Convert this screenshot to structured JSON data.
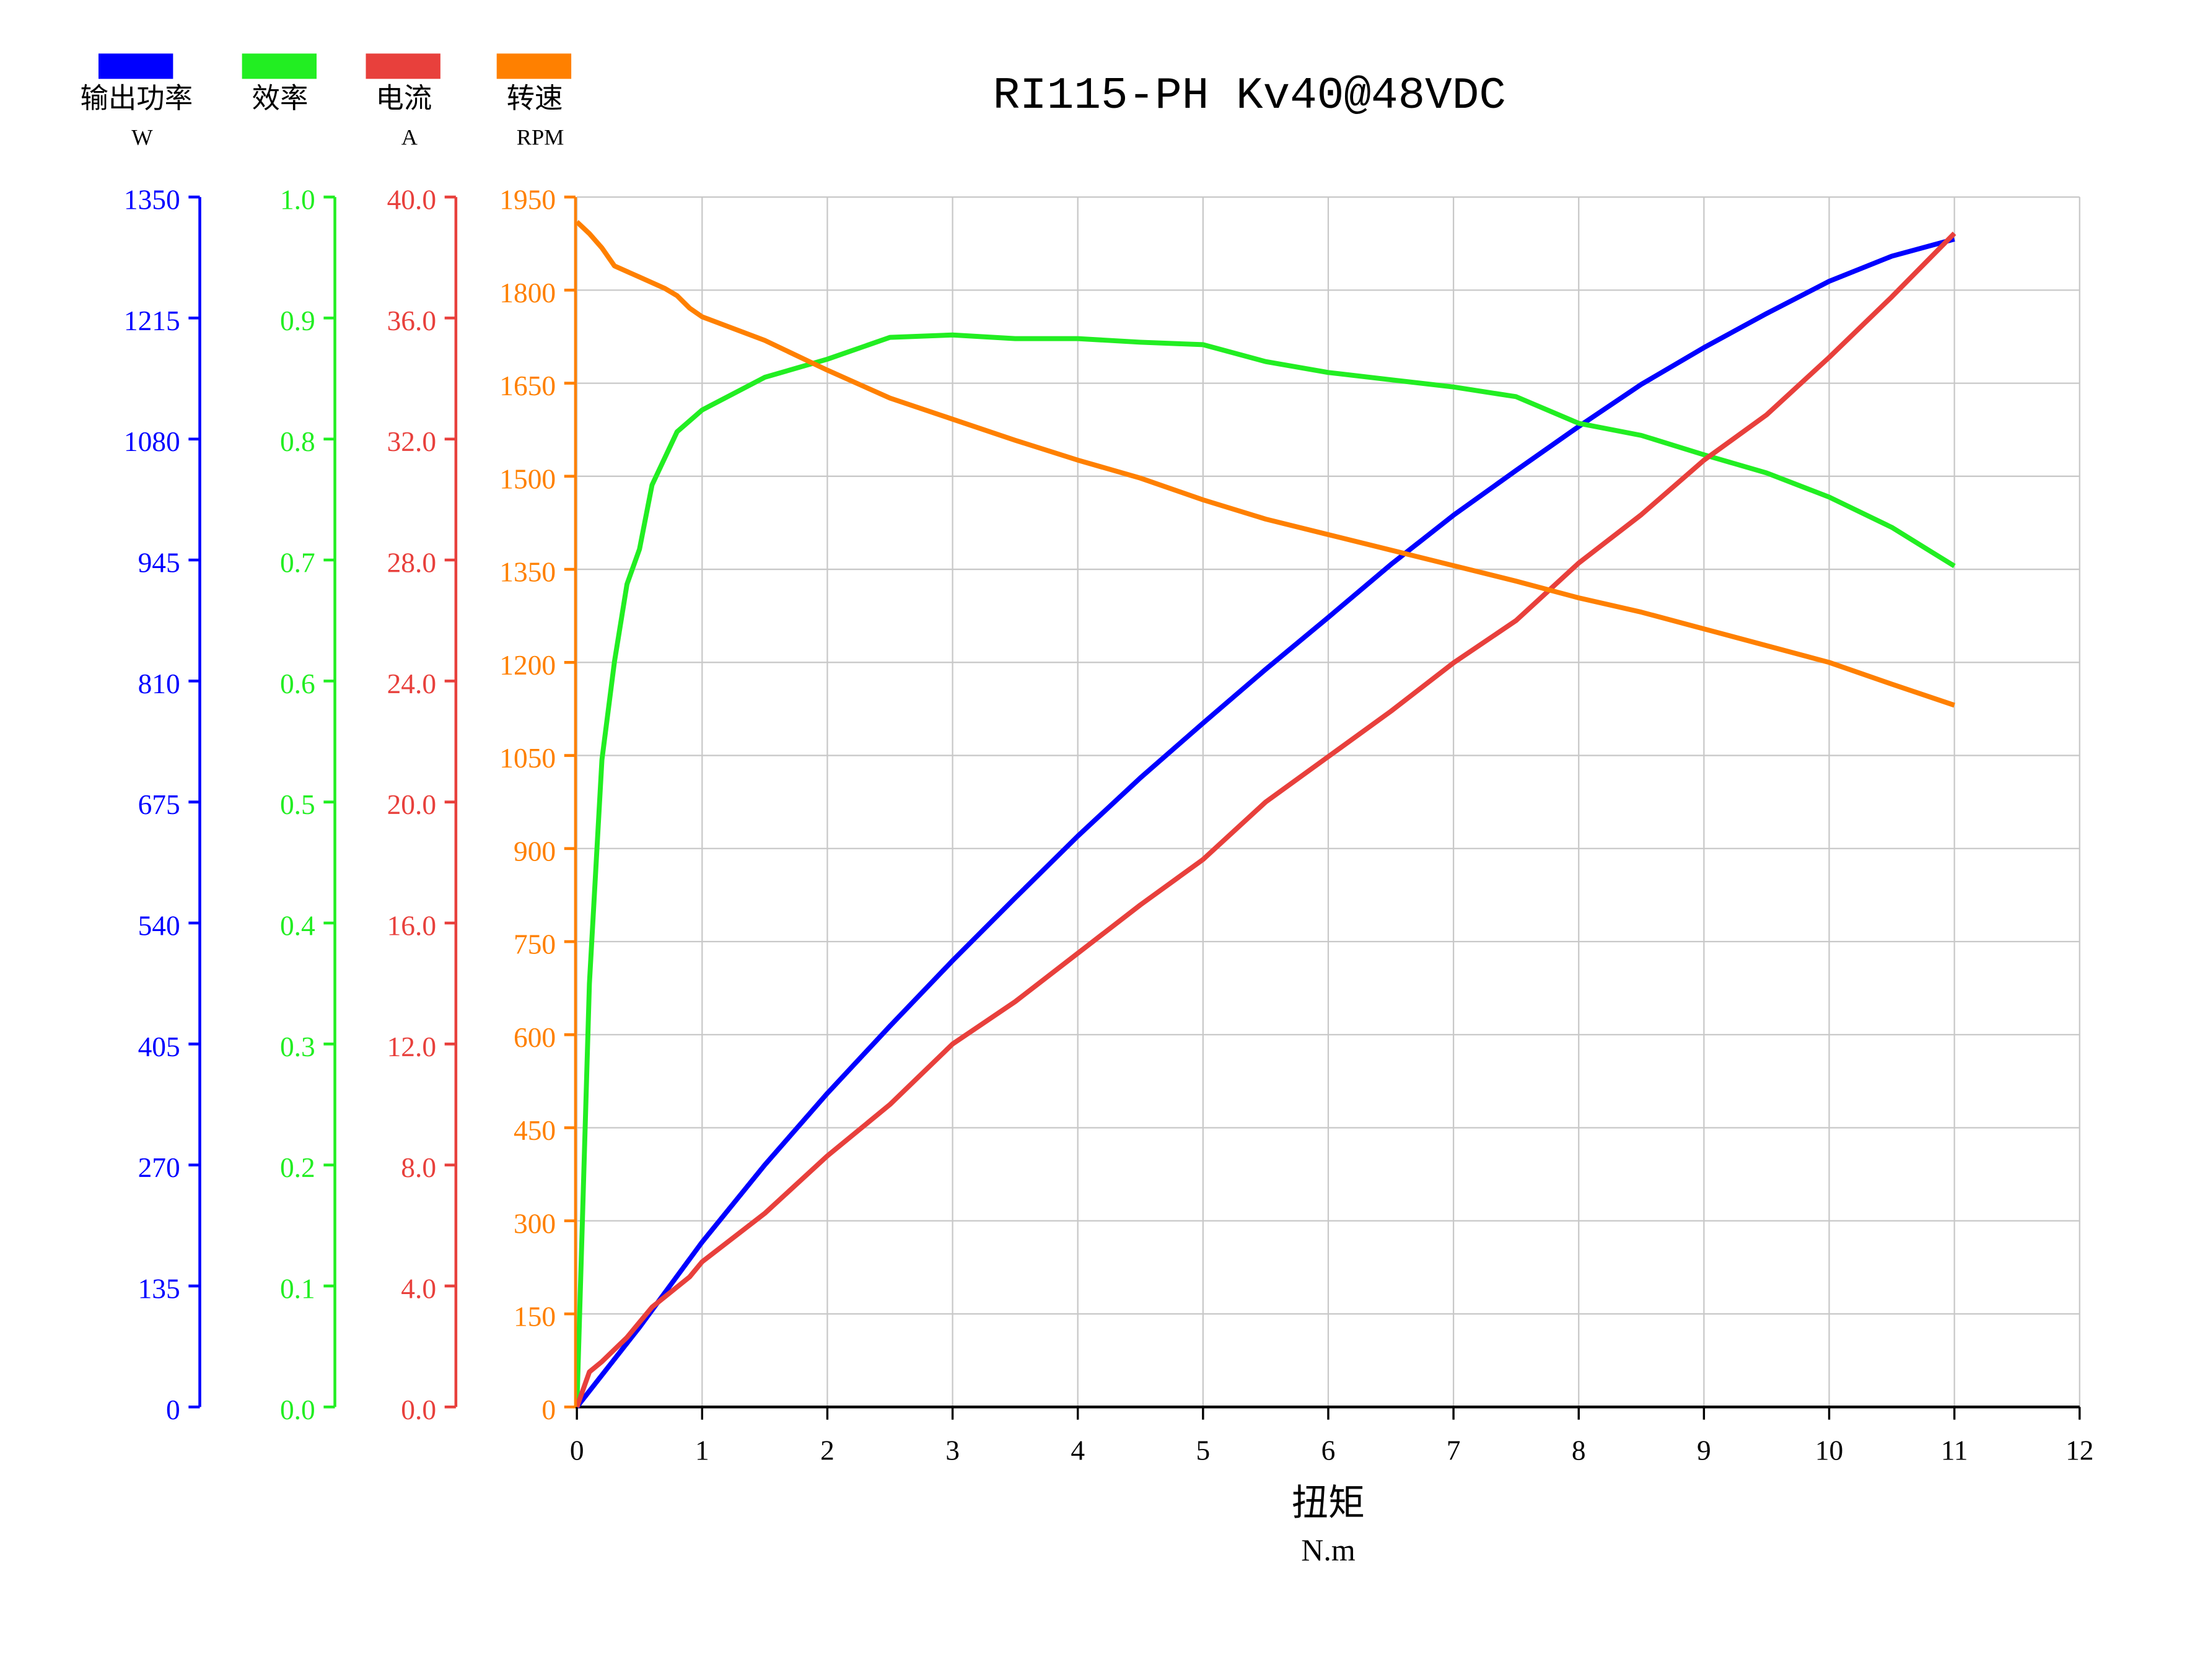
{
  "chart_data": {
    "type": "line",
    "title": "RI115-PH Kv40@48VDC",
    "x_label": "扭矩",
    "x_unit": "N.m",
    "xlim": [
      0,
      12
    ],
    "xticks": [
      0,
      1,
      2,
      3,
      4,
      5,
      6,
      7,
      8,
      9,
      10,
      11,
      12
    ],
    "series": [
      {
        "name": "输出功率",
        "unit": "W",
        "color": "#0000ff",
        "ylim": [
          0,
          1350
        ],
        "yticks": [
          0,
          135,
          270,
          405,
          540,
          675,
          810,
          945,
          1080,
          1215,
          1350
        ],
        "x": [
          0,
          0.5,
          0.9,
          1,
          1.5,
          2,
          2.5,
          3,
          3.5,
          4,
          4.5,
          5,
          5.5,
          6,
          6.5,
          7,
          7.5,
          8,
          8.5,
          9,
          9.5,
          10,
          10.5,
          11
        ],
        "values": [
          0,
          89,
          165,
          184,
          270,
          350,
          425,
          498,
          568,
          637,
          702,
          763,
          823,
          881,
          940,
          995,
          1045,
          1094,
          1141,
          1182,
          1220,
          1256,
          1284,
          1303
        ]
      },
      {
        "name": "效率",
        "color": "#22ee22",
        "ylim": [
          0,
          1
        ],
        "yticks": [
          {
            "value": 0,
            "label": "0.0"
          },
          0.1,
          0.2,
          0.3,
          0.4,
          0.5,
          0.6,
          0.7,
          0.8,
          0.9,
          {
            "value": 1,
            "label": "1.0"
          }
        ],
        "x": [
          0,
          0.1,
          0.2,
          0.3,
          0.4,
          0.5,
          0.6,
          0.8,
          1,
          1.5,
          2,
          2.5,
          3,
          3.5,
          4,
          4.5,
          5,
          5.5,
          6,
          6.5,
          7,
          7.5,
          8,
          8.5,
          9,
          9.5,
          10,
          10.5,
          11
        ],
        "values": [
          0,
          0.35,
          0.535,
          0.616,
          0.68,
          0.709,
          0.762,
          0.806,
          0.824,
          0.851,
          0.866,
          0.884,
          0.886,
          0.883,
          0.883,
          0.88,
          0.878,
          0.864,
          0.855,
          0.849,
          0.843,
          0.835,
          0.813,
          0.803,
          0.787,
          0.772,
          0.752,
          0.727,
          0.695
        ]
      },
      {
        "name": "电流",
        "unit": "A",
        "color": "#e8403c",
        "ylim": [
          0,
          40
        ],
        "yticks": [
          {
            "value": 0,
            "label": "0.0"
          },
          {
            "value": 4,
            "label": "4.0"
          },
          {
            "value": 8,
            "label": "8.0"
          },
          {
            "value": 12,
            "label": "12.0"
          },
          {
            "value": 16,
            "label": "16.0"
          },
          {
            "value": 20,
            "label": "20.0"
          },
          {
            "value": 24,
            "label": "24.0"
          },
          {
            "value": 28,
            "label": "28.0"
          },
          {
            "value": 32,
            "label": "32.0"
          },
          {
            "value": 36,
            "label": "36.0"
          },
          {
            "value": 40,
            "label": "40.0"
          }
        ],
        "x": [
          0,
          0.1,
          0.2,
          0.4,
          0.6,
          0.9,
          1,
          1.5,
          2,
          2.5,
          3,
          3.5,
          4,
          4.5,
          5,
          5.5,
          6,
          6.5,
          7,
          7.5,
          8,
          8.5,
          9,
          9.5,
          10,
          10.5,
          11
        ],
        "values": [
          0,
          1.16,
          1.5,
          2.3,
          3.3,
          4.3,
          4.8,
          6.4,
          8.3,
          10.0,
          12.0,
          13.4,
          15.0,
          16.6,
          18.1,
          20.0,
          21.5,
          23.0,
          24.6,
          26.0,
          27.9,
          29.5,
          31.3,
          32.8,
          34.7,
          36.7,
          38.8
        ]
      },
      {
        "name": "转速",
        "unit": "RPM",
        "color": "#ff8000",
        "grid": true,
        "ylim": [
          0,
          1950
        ],
        "yticks": [
          0,
          150,
          300,
          450,
          600,
          750,
          900,
          1050,
          1200,
          1350,
          1500,
          1650,
          1800,
          1950
        ],
        "x": [
          0,
          0.1,
          0.2,
          0.3,
          0.5,
          0.7,
          0.8,
          0.9,
          1,
          1.5,
          2,
          2.5,
          3,
          3.5,
          4,
          4.5,
          5,
          5.5,
          6,
          6.5,
          7,
          7.5,
          8,
          8.5,
          9,
          9.5,
          10,
          10.5,
          11
        ],
        "values": [
          1910,
          1891,
          1868,
          1839,
          1821,
          1803,
          1791,
          1771,
          1757,
          1719,
          1671,
          1626,
          1592,
          1558,
          1526,
          1497,
          1462,
          1431,
          1406,
          1381,
          1356,
          1331,
          1304,
          1281,
          1254,
          1227,
          1200,
          1165,
          1131
        ]
      }
    ]
  }
}
